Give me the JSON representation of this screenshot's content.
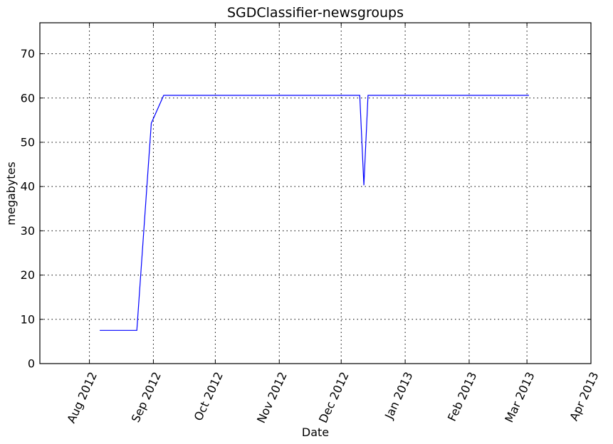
{
  "chart_data": {
    "type": "line",
    "title": "SGDClassifier-newsgroups",
    "xlabel": "Date",
    "ylabel": "megabytes",
    "x_scale": "date",
    "xlim": [
      "2012-07-08",
      "2013-04-01"
    ],
    "ylim": [
      0,
      77
    ],
    "grid": true,
    "legend": "none",
    "x_ticks": [
      {
        "date": "2012-08-01",
        "label": "Aug 2012"
      },
      {
        "date": "2012-09-01",
        "label": "Sep 2012"
      },
      {
        "date": "2012-10-01",
        "label": "Oct 2012"
      },
      {
        "date": "2012-11-01",
        "label": "Nov 2012"
      },
      {
        "date": "2012-12-01",
        "label": "Dec 2012"
      },
      {
        "date": "2013-01-01",
        "label": "Jan 2013"
      },
      {
        "date": "2013-02-01",
        "label": "Feb 2013"
      },
      {
        "date": "2013-03-01",
        "label": "Mar 2013"
      },
      {
        "date": "2013-04-01",
        "label": "Apr 2013"
      }
    ],
    "y_ticks": [
      0,
      10,
      20,
      30,
      40,
      50,
      60,
      70
    ],
    "series": [
      {
        "color": "#0000ff",
        "x": [
          "2012-08-06",
          "2012-08-24",
          "2012-08-31",
          "2012-09-06",
          "2012-12-10",
          "2012-12-12",
          "2012-12-14",
          "2013-03-02"
        ],
        "y": [
          7.5,
          7.5,
          54.3,
          60.6,
          60.6,
          40.3,
          60.6,
          60.6
        ]
      }
    ]
  }
}
